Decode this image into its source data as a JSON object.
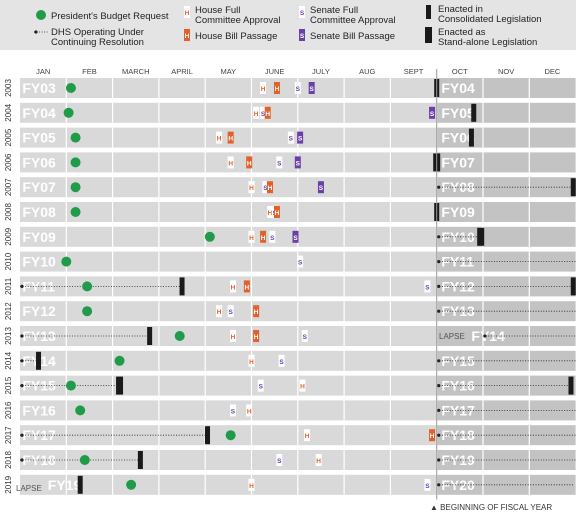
{
  "legend": {
    "budget": "President's Budget Request",
    "cr_line1": "DHS Operating Under",
    "cr_line2": "Continuing Resolution",
    "house_full_line1": "House Full",
    "house_full_line2": "Committee Approval",
    "house_bill": "House Bill Passage",
    "senate_full_line1": "Senate Full",
    "senate_full_line2": "Committee Approval",
    "senate_bill": "Senate Bill Passage",
    "consolidated_line1": "Enacted in",
    "consolidated_line2": "Consolidated Legislation",
    "standalone_line1": "Enacted as",
    "standalone_line2": "Stand-alone Legislation"
  },
  "footnote": "▲ BEGINNING OF FISCAL YEAR",
  "lapse_label": "LAPSE",
  "colors": {
    "budget": "#1f9b4a",
    "house_bill": "#e0622a",
    "senate_bill": "#6b3fa8",
    "house_letter": "#e0622a",
    "senate_letter": "#6b3fa8",
    "enacted": "#1a1a1a",
    "track_light": "#d9d9d9",
    "track_dark": "#c3c3c3"
  },
  "chart_data": {
    "type": "timeline",
    "x_unit": "month of calendar year (1 = start of January)",
    "xlim": [
      1,
      13
    ],
    "months": [
      "JAN",
      "FEB",
      "MARCH",
      "APRIL",
      "MAY",
      "JUNE",
      "JULY",
      "AUG",
      "SEPT",
      "OCT",
      "NOV",
      "DEC"
    ],
    "rows": [
      {
        "year": "2003",
        "fy_left": "FY03",
        "fy_right": "FY04",
        "budget": 2.1,
        "cr": [],
        "house_full": [
          6.25
        ],
        "house_bill": [
          6.55
        ],
        "senate_full": [
          7.0
        ],
        "senate_bill": [
          7.3
        ],
        "enacted": [
          {
            "x": 10.0,
            "kind": "consolidated"
          }
        ]
      },
      {
        "year": "2004",
        "fy_left": "FY04",
        "fy_right": "FY05",
        "budget": 2.05,
        "cr": [],
        "house_full": [
          6.1
        ],
        "house_bill": [
          6.35
        ],
        "senate_full": [
          6.25
        ],
        "senate_bill": [
          9.9
        ],
        "enacted": [
          {
            "x": 10.8,
            "kind": "consolidated"
          }
        ]
      },
      {
        "year": "2005",
        "fy_left": "FY05",
        "fy_right": "FY06",
        "budget": 2.2,
        "cr": [],
        "house_full": [
          5.3
        ],
        "house_bill": [
          5.55
        ],
        "senate_full": [
          6.85
        ],
        "senate_bill": [
          7.05
        ],
        "enacted": [
          {
            "x": 10.75,
            "kind": "consolidated"
          }
        ]
      },
      {
        "year": "2006",
        "fy_left": "FY06",
        "fy_right": "FY07",
        "budget": 2.2,
        "cr": [],
        "house_full": [
          5.55
        ],
        "house_bill": [
          5.95
        ],
        "senate_full": [
          6.6
        ],
        "senate_bill": [
          7.0
        ],
        "enacted": [
          {
            "x": 10.0,
            "kind": "standalone"
          }
        ]
      },
      {
        "year": "2007",
        "fy_left": "FY07",
        "fy_right": "FY08",
        "budget": 2.2,
        "cr": [
          {
            "from": 10.0,
            "to": 12.95
          }
        ],
        "house_full": [
          6.0
        ],
        "house_bill": [
          6.4
        ],
        "senate_full": [
          6.3
        ],
        "senate_bill": [
          7.5
        ],
        "enacted": [
          {
            "x": 12.95,
            "kind": "consolidated"
          }
        ]
      },
      {
        "year": "2008",
        "fy_left": "FY08",
        "fy_right": "FY09",
        "budget": 2.2,
        "cr": [],
        "house_full": [
          6.4
        ],
        "house_bill": [
          6.55
        ],
        "senate_full": [
          6.5
        ],
        "senate_bill": [],
        "enacted": [
          {
            "x": 10.0,
            "kind": "consolidated"
          }
        ]
      },
      {
        "year": "2009",
        "fy_left": "FY09",
        "fy_right": "FY10",
        "budget": 5.1,
        "cr": [
          {
            "from": 10.0,
            "to": 10.95
          }
        ],
        "house_full": [
          6.0
        ],
        "house_bill": [
          6.25
        ],
        "senate_full": [
          6.45
        ],
        "senate_bill": [
          6.95
        ],
        "enacted": [
          {
            "x": 10.95,
            "kind": "standalone"
          }
        ]
      },
      {
        "year": "2010",
        "fy_left": "FY10",
        "fy_right": "FY11",
        "budget": 2.0,
        "cr": [
          {
            "from": 10.0,
            "to": 13.0
          }
        ],
        "house_full": [],
        "house_bill": [],
        "senate_full": [
          7.05
        ],
        "senate_bill": [],
        "enacted": []
      },
      {
        "year": "2011",
        "fy_left": "FY11",
        "fy_right": "FY12",
        "budget": 2.45,
        "cr": [
          {
            "from": 1.0,
            "to": 4.5
          },
          {
            "from": 10.0,
            "to": 12.95
          }
        ],
        "house_full": [
          5.6
        ],
        "house_bill": [
          5.9
        ],
        "senate_full": [
          9.8
        ],
        "senate_bill": [],
        "enacted": [
          {
            "x": 4.5,
            "kind": "consolidated"
          },
          {
            "x": 12.95,
            "kind": "consolidated"
          }
        ]
      },
      {
        "year": "2012",
        "fy_left": "FY12",
        "fy_right": "FY13",
        "budget": 2.45,
        "cr": [
          {
            "from": 10.0,
            "to": 13.0
          }
        ],
        "house_full": [
          5.3
        ],
        "house_bill": [
          6.1
        ],
        "senate_full": [
          5.55
        ],
        "senate_bill": [],
        "enacted": []
      },
      {
        "year": "2013",
        "fy_left": "FY13",
        "fy_right": "FY14",
        "budget": 4.45,
        "cr": [
          {
            "from": 1.0,
            "to": 3.8
          },
          {
            "from": 11.0,
            "to": 13.0
          }
        ],
        "house_full": [
          5.6
        ],
        "house_bill": [
          6.1
        ],
        "senate_full": [
          7.15
        ],
        "senate_bill": [],
        "enacted": [
          {
            "x": 3.8,
            "kind": "consolidated"
          }
        ],
        "lapse_right": true
      },
      {
        "year": "2014",
        "fy_left": "FY14",
        "fy_right": "FY15",
        "budget": 3.15,
        "cr": [
          {
            "from": 1.0,
            "to": 1.4
          },
          {
            "from": 10.0,
            "to": 13.0
          }
        ],
        "house_full": [
          6.0
        ],
        "house_bill": [],
        "senate_full": [
          6.65
        ],
        "senate_bill": [],
        "enacted": [
          {
            "x": 1.4,
            "kind": "consolidated"
          }
        ]
      },
      {
        "year": "2015",
        "fy_left": "FY15",
        "fy_right": "FY16",
        "budget": 2.1,
        "cr": [
          {
            "from": 1.0,
            "to": 3.15
          },
          {
            "from": 10.0,
            "to": 12.9
          }
        ],
        "house_full": [
          7.1
        ],
        "house_bill": [],
        "senate_full": [
          6.2
        ],
        "senate_bill": [],
        "enacted": [
          {
            "x": 3.15,
            "kind": "standalone"
          },
          {
            "x": 12.9,
            "kind": "consolidated"
          }
        ]
      },
      {
        "year": "2016",
        "fy_left": "FY16",
        "fy_right": "FY17",
        "budget": 2.3,
        "cr": [
          {
            "from": 10.0,
            "to": 13.0
          }
        ],
        "house_full": [
          5.95
        ],
        "house_bill": [],
        "senate_full": [
          5.6
        ],
        "senate_bill": [],
        "enacted": []
      },
      {
        "year": "2017",
        "fy_left": "FY17",
        "fy_right": "FY18",
        "budget": 5.55,
        "cr": [
          {
            "from": 1.0,
            "to": 5.05
          },
          {
            "from": 10.0,
            "to": 13.0
          }
        ],
        "house_full": [
          7.2
        ],
        "house_bill": [
          9.9
        ],
        "senate_full": [],
        "senate_bill": [],
        "enacted": [
          {
            "x": 5.05,
            "kind": "consolidated"
          }
        ]
      },
      {
        "year": "2018",
        "fy_left": "FY18",
        "fy_right": "FY19",
        "budget": 2.4,
        "cr": [
          {
            "from": 1.0,
            "to": 3.6
          },
          {
            "from": 10.0,
            "to": 13.0
          }
        ],
        "house_full": [
          7.45
        ],
        "house_bill": [],
        "senate_full": [
          6.6
        ],
        "senate_bill": [],
        "enacted": [
          {
            "x": 3.6,
            "kind": "consolidated"
          }
        ]
      },
      {
        "year": "2019",
        "fy_left": "FY19",
        "fy_right": "FY20",
        "budget": 3.4,
        "cr": [
          {
            "from": 10.0,
            "to": 12.95
          }
        ],
        "house_full": [
          6.0
        ],
        "house_bill": [],
        "senate_full": [
          9.8
        ],
        "senate_bill": [],
        "enacted": [
          {
            "x": 2.3,
            "kind": "consolidated"
          }
        ],
        "lapse_left": true
      }
    ]
  }
}
